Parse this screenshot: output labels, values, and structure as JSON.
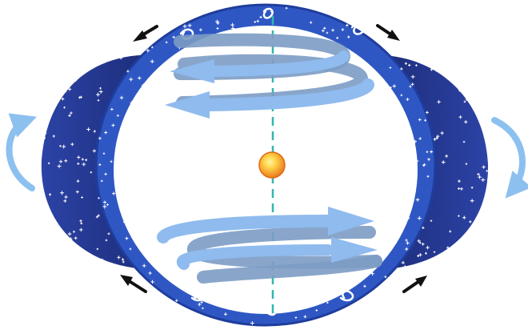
{
  "diagram": {
    "colors": {
      "background": "#ffffff",
      "outer_lobe": "#2a3f9a",
      "outer_lobe_dark": "#1b2a78",
      "ring": "#2f57c4",
      "ring_edge": "#1f3d9c",
      "inner": "#ffffff",
      "spiral_light": "#7fb0ea",
      "spiral_mid": "#6a98cf",
      "spiral_gray": "#7c9cc4",
      "axis": "#33b6b0",
      "core_outer": "#f39a1e",
      "core_inner": "#ffd54a",
      "side_arrow": "#8cc0ef",
      "flow_arrow": "#111111",
      "speck": "#ffffff"
    },
    "icons": {
      "core": "sun-core-icon",
      "flow_arrows": "black-arrow-icon",
      "side_rotation": "curved-arrow-icon",
      "ring_loops": "small-loop-icon"
    }
  }
}
